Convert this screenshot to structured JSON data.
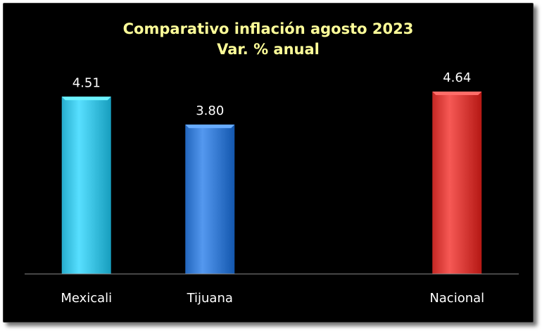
{
  "chart_data": {
    "type": "bar",
    "title": "Comparativo inflación agosto 2023",
    "subtitle": "Var. % anual",
    "categories": [
      "Mexicali",
      "Tijuana",
      "",
      "Nacional"
    ],
    "values": [
      4.51,
      3.8,
      null,
      4.64
    ],
    "value_labels": [
      "4.51",
      "3.80",
      "",
      "4.64"
    ],
    "colors": [
      "#3fc6e6",
      "#3b7fd6",
      "",
      "#dd403c"
    ],
    "ylim": [
      0,
      4.64
    ],
    "grid": false,
    "legend": "none",
    "xlabel": "",
    "ylabel": ""
  },
  "background_color": "#000000",
  "title_color": "#ffff99"
}
